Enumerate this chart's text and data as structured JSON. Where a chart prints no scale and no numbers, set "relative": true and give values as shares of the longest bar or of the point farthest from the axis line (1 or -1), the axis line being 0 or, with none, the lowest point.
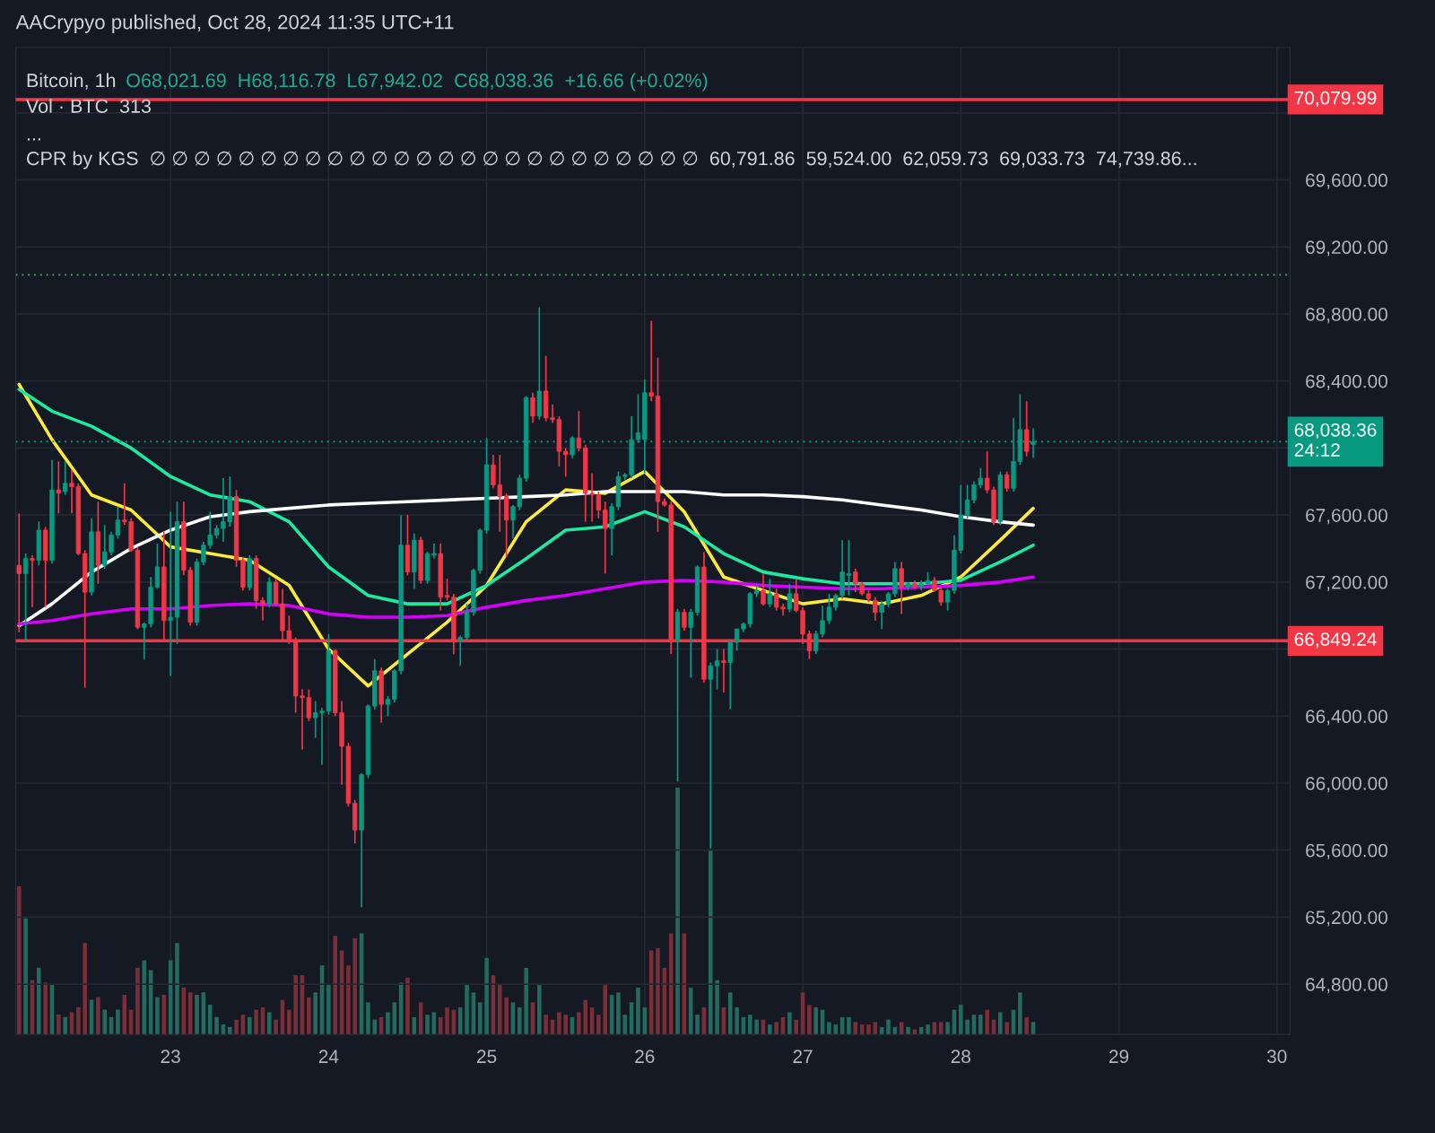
{
  "chart_data": [
    {
      "type": "candlestick",
      "title": "AACrypyo published, Oct 28, 2024 11:35 UTC+11",
      "subtitle": "Bitcoin, 1h",
      "annotations": [
        "O68,021.69  H68,116.78  L67,942.02  C68,038.36  +16.66 (+0.02%)",
        "Vol · BTC  313",
        "...",
        "CPR by KGS  ∅ ∅ ∅ ∅ ∅ ∅ ∅ ∅ ∅ ∅ ∅ ∅ ∅ ∅ ∅ ∅ ∅ ∅ ∅ ∅ ∅ ∅ ∅ ∅ ∅  60,791.86  59,524.00  62,059.73  69,033.73  74,739.86..."
      ],
      "x": [
        "2024-10-22T01:00",
        "2024-10-22T02:00",
        "2024-10-22T03:00",
        "2024-10-22T04:00",
        "2024-10-22T05:00",
        "2024-10-22T06:00",
        "2024-10-22T07:00",
        "2024-10-22T08:00",
        "2024-10-22T09:00",
        "2024-10-22T10:00",
        "2024-10-22T11:00",
        "2024-10-22T12:00",
        "2024-10-22T13:00",
        "2024-10-22T14:00",
        "2024-10-22T15:00",
        "2024-10-22T16:00",
        "2024-10-22T17:00",
        "2024-10-22T18:00",
        "2024-10-22T19:00",
        "2024-10-22T20:00",
        "2024-10-22T21:00",
        "2024-10-22T22:00",
        "2024-10-22T23:00",
        "2024-10-23T00:00",
        "2024-10-23T01:00",
        "2024-10-23T02:00",
        "2024-10-23T03:00",
        "2024-10-23T04:00",
        "2024-10-23T05:00",
        "2024-10-23T06:00",
        "2024-10-23T07:00",
        "2024-10-23T08:00",
        "2024-10-23T09:00",
        "2024-10-23T10:00",
        "2024-10-23T11:00",
        "2024-10-23T12:00",
        "2024-10-23T13:00",
        "2024-10-23T14:00",
        "2024-10-23T15:00",
        "2024-10-23T16:00",
        "2024-10-23T17:00",
        "2024-10-23T18:00",
        "2024-10-23T19:00",
        "2024-10-23T20:00",
        "2024-10-23T21:00",
        "2024-10-23T22:00",
        "2024-10-23T23:00",
        "2024-10-24T00:00",
        "2024-10-24T01:00",
        "2024-10-24T02:00",
        "2024-10-24T03:00",
        "2024-10-24T04:00",
        "2024-10-24T05:00",
        "2024-10-24T06:00",
        "2024-10-24T07:00",
        "2024-10-24T08:00",
        "2024-10-24T09:00",
        "2024-10-24T10:00",
        "2024-10-24T11:00",
        "2024-10-24T12:00",
        "2024-10-24T13:00",
        "2024-10-24T14:00",
        "2024-10-24T15:00",
        "2024-10-24T16:00",
        "2024-10-24T17:00",
        "2024-10-24T18:00",
        "2024-10-24T19:00",
        "2024-10-24T20:00",
        "2024-10-24T21:00",
        "2024-10-24T22:00",
        "2024-10-24T23:00",
        "2024-10-25T00:00",
        "2024-10-25T01:00",
        "2024-10-25T02:00",
        "2024-10-25T03:00",
        "2024-10-25T04:00",
        "2024-10-25T05:00",
        "2024-10-25T06:00",
        "2024-10-25T07:00",
        "2024-10-25T08:00",
        "2024-10-25T09:00",
        "2024-10-25T10:00",
        "2024-10-25T11:00",
        "2024-10-25T12:00",
        "2024-10-25T13:00",
        "2024-10-25T14:00",
        "2024-10-25T15:00",
        "2024-10-25T16:00",
        "2024-10-25T17:00",
        "2024-10-25T18:00",
        "2024-10-25T19:00",
        "2024-10-25T20:00",
        "2024-10-25T21:00",
        "2024-10-25T22:00",
        "2024-10-25T23:00",
        "2024-10-26T00:00",
        "2024-10-26T01:00",
        "2024-10-26T02:00",
        "2024-10-26T03:00",
        "2024-10-26T04:00",
        "2024-10-26T05:00",
        "2024-10-26T06:00",
        "2024-10-26T07:00",
        "2024-10-26T08:00",
        "2024-10-26T09:00",
        "2024-10-26T10:00",
        "2024-10-26T11:00",
        "2024-10-26T12:00",
        "2024-10-26T13:00",
        "2024-10-26T14:00",
        "2024-10-26T15:00",
        "2024-10-26T16:00",
        "2024-10-26T17:00",
        "2024-10-26T18:00",
        "2024-10-26T19:00",
        "2024-10-26T20:00",
        "2024-10-26T21:00",
        "2024-10-26T22:00",
        "2024-10-26T23:00",
        "2024-10-27T00:00",
        "2024-10-27T01:00",
        "2024-10-27T02:00",
        "2024-10-27T03:00",
        "2024-10-27T04:00",
        "2024-10-27T05:00",
        "2024-10-27T06:00",
        "2024-10-27T07:00",
        "2024-10-27T08:00",
        "2024-10-27T09:00",
        "2024-10-27T10:00",
        "2024-10-27T11:00",
        "2024-10-27T12:00",
        "2024-10-27T13:00",
        "2024-10-27T14:00",
        "2024-10-27T15:00",
        "2024-10-27T16:00",
        "2024-10-27T17:00",
        "2024-10-27T18:00",
        "2024-10-27T19:00",
        "2024-10-27T20:00",
        "2024-10-27T21:00",
        "2024-10-27T22:00",
        "2024-10-27T23:00",
        "2024-10-28T00:00",
        "2024-10-28T01:00",
        "2024-10-28T02:00",
        "2024-10-28T03:00",
        "2024-10-28T04:00",
        "2024-10-28T05:00",
        "2024-10-28T06:00",
        "2024-10-28T07:00",
        "2024-10-28T08:00",
        "2024-10-28T09:00",
        "2024-10-28T10:00",
        "2024-10-28T11:00"
      ],
      "ohlc": [
        [
          67300,
          67610,
          66900,
          67250
        ],
        [
          67250,
          67370,
          66850,
          67340
        ],
        [
          67340,
          67360,
          67050,
          67330
        ],
        [
          67330,
          67560,
          67300,
          67510
        ],
        [
          67510,
          67530,
          67050,
          67330
        ],
        [
          67330,
          67930,
          67310,
          67750
        ],
        [
          67750,
          67920,
          67610,
          67730
        ],
        [
          67740,
          67920,
          67720,
          67790
        ],
        [
          67790,
          67870,
          67610,
          67770
        ],
        [
          67770,
          67790,
          67360,
          67370
        ],
        [
          67370,
          67390,
          66570,
          67140
        ],
        [
          67140,
          67580,
          67120,
          67500
        ],
        [
          67500,
          67680,
          67190,
          67300
        ],
        [
          67300,
          67540,
          67280,
          67380
        ],
        [
          67380,
          67500,
          67360,
          67480
        ],
        [
          67480,
          67650,
          67460,
          67570
        ],
        [
          67570,
          67790,
          67540,
          67560
        ],
        [
          67560,
          67580,
          67380,
          67390
        ],
        [
          67390,
          67410,
          66920,
          66930
        ],
        [
          66930,
          66960,
          66740,
          66950
        ],
        [
          66950,
          67230,
          66930,
          67170
        ],
        [
          67170,
          67430,
          67160,
          67290
        ],
        [
          67290,
          67500,
          66850,
          66970
        ],
        [
          66970,
          67620,
          66640,
          66990
        ],
        [
          66990,
          67680,
          66830,
          67560
        ],
        [
          67560,
          67680,
          67240,
          67270
        ],
        [
          67270,
          67290,
          66940,
          66960
        ],
        [
          66960,
          67340,
          66940,
          67320
        ],
        [
          67320,
          67440,
          67300,
          67420
        ],
        [
          67420,
          67620,
          67400,
          67480
        ],
        [
          67480,
          67540,
          67460,
          67520
        ],
        [
          67520,
          67820,
          67440,
          67560
        ],
        [
          67560,
          67830,
          67530,
          67710
        ],
        [
          67710,
          67750,
          67290,
          67330
        ],
        [
          67330,
          67350,
          67150,
          67170
        ],
        [
          67170,
          67360,
          67150,
          67340
        ],
        [
          67340,
          67360,
          67040,
          67090
        ],
        [
          67090,
          67110,
          66970,
          67070
        ],
        [
          67070,
          67230,
          67050,
          67200
        ],
        [
          67200,
          67220,
          67060,
          67070
        ],
        [
          67070,
          67160,
          66850,
          66910
        ],
        [
          66910,
          67000,
          66830,
          66850
        ],
        [
          66850,
          66870,
          66420,
          66520
        ],
        [
          66520,
          66560,
          66200,
          66510
        ],
        [
          66510,
          66560,
          66370,
          66390
        ],
        [
          66390,
          66490,
          66270,
          66420
        ],
        [
          66420,
          66450,
          66110,
          66430
        ],
        [
          66430,
          66890,
          66410,
          66790
        ],
        [
          66790,
          66800,
          66400,
          66420
        ],
        [
          66420,
          66490,
          65990,
          66220
        ],
        [
          66220,
          66240,
          65860,
          65880
        ],
        [
          65880,
          65900,
          65640,
          65720
        ],
        [
          65720,
          66060,
          65260,
          66050
        ],
        [
          66050,
          66470,
          66030,
          66460
        ],
        [
          66460,
          66740,
          66440,
          66670
        ],
        [
          66670,
          66690,
          66360,
          66470
        ],
        [
          66470,
          66520,
          66400,
          66500
        ],
        [
          66500,
          66680,
          66480,
          66670
        ],
        [
          66670,
          67600,
          66650,
          67420
        ],
        [
          67420,
          67600,
          67240,
          67260
        ],
        [
          67260,
          67490,
          67160,
          67450
        ],
        [
          67450,
          67470,
          67190,
          67210
        ],
        [
          67210,
          67380,
          67190,
          67370
        ],
        [
          67360,
          67430,
          67340,
          67370
        ],
        [
          67370,
          67430,
          67030,
          67110
        ],
        [
          67120,
          67220,
          67090,
          67110
        ],
        [
          67110,
          67130,
          66770,
          66850
        ],
        [
          66850,
          66880,
          66700,
          66870
        ],
        [
          66870,
          67070,
          66850,
          67020
        ],
        [
          67020,
          67280,
          67000,
          67270
        ],
        [
          67270,
          67520,
          67250,
          67510
        ],
        [
          67510,
          68060,
          67490,
          67900
        ],
        [
          67900,
          67960,
          67760,
          67780
        ],
        [
          67780,
          67960,
          67500,
          67710
        ],
        [
          67710,
          67730,
          67350,
          67570
        ],
        [
          67570,
          67660,
          67460,
          67650
        ],
        [
          67650,
          67840,
          67630,
          67820
        ],
        [
          67820,
          68310,
          67800,
          68300
        ],
        [
          68300,
          68330,
          68150,
          68190
        ],
        [
          68190,
          68840,
          68170,
          68340
        ],
        [
          68340,
          68550,
          68160,
          68180
        ],
        [
          68180,
          68260,
          68150,
          68170
        ],
        [
          68170,
          68190,
          67890,
          67980
        ],
        [
          67980,
          68000,
          67830,
          67960
        ],
        [
          67960,
          68070,
          67940,
          68060
        ],
        [
          68060,
          68220,
          67980,
          68000
        ],
        [
          68000,
          68020,
          67560,
          67730
        ],
        [
          67730,
          67850,
          67560,
          67720
        ],
        [
          67720,
          67740,
          67580,
          67630
        ],
        [
          67630,
          67680,
          67250,
          67520
        ],
        [
          67520,
          67670,
          67360,
          67650
        ],
        [
          67650,
          67860,
          67630,
          67830
        ],
        [
          67830,
          67850,
          67810,
          67840
        ],
        [
          67840,
          68190,
          67820,
          68050
        ],
        [
          68050,
          68320,
          68030,
          68090
        ],
        [
          68050,
          68410,
          67850,
          68330
        ],
        [
          68330,
          68760,
          68280,
          68310
        ],
        [
          68310,
          68540,
          67500,
          67680
        ],
        [
          67680,
          67700,
          67650,
          67660
        ],
        [
          67660,
          67680,
          66770,
          66850
        ],
        [
          66850,
          67040,
          66010,
          67020
        ],
        [
          67020,
          67040,
          66910,
          66930
        ],
        [
          66930,
          67040,
          66630,
          67020
        ],
        [
          67020,
          67300,
          67000,
          67290
        ],
        [
          67290,
          67380,
          66600,
          66620
        ],
        [
          66620,
          66720,
          65610,
          66700
        ],
        [
          66700,
          66800,
          66560,
          66730
        ],
        [
          66730,
          66800,
          66540,
          66720
        ],
        [
          66720,
          66850,
          66440,
          66840
        ],
        [
          66840,
          66920,
          66790,
          66920
        ],
        [
          66920,
          66960,
          66900,
          66950
        ],
        [
          66950,
          67140,
          66930,
          67130
        ],
        [
          67130,
          67190,
          67110,
          67150
        ],
        [
          67150,
          67250,
          67060,
          67070
        ],
        [
          67070,
          67220,
          67050,
          67130
        ],
        [
          67130,
          67160,
          67030,
          67050
        ],
        [
          67050,
          67070,
          67000,
          67040
        ],
        [
          67040,
          67190,
          67020,
          67130
        ],
        [
          67130,
          67220,
          67020,
          67030
        ],
        [
          67030,
          67050,
          66830,
          66890
        ],
        [
          66890,
          66910,
          66740,
          66790
        ],
        [
          66790,
          66910,
          66770,
          66890
        ],
        [
          66890,
          67060,
          66870,
          66970
        ],
        [
          66970,
          67130,
          66950,
          67050
        ],
        [
          67050,
          67130,
          67030,
          67120
        ],
        [
          67120,
          67450,
          67100,
          67260
        ],
        [
          67240,
          67450,
          67120,
          67250
        ],
        [
          67260,
          67280,
          67140,
          67190
        ],
        [
          67190,
          67200,
          67120,
          67130
        ],
        [
          67130,
          67150,
          67080,
          67100
        ],
        [
          67090,
          67110,
          66970,
          67020
        ],
        [
          67020,
          67090,
          66920,
          67070
        ],
        [
          67070,
          67140,
          67050,
          67130
        ],
        [
          67130,
          67320,
          67110,
          67280
        ],
        [
          67280,
          67320,
          67010,
          67170
        ],
        [
          67170,
          67200,
          67150,
          67190
        ],
        [
          67190,
          67210,
          67160,
          67170
        ],
        [
          67170,
          67210,
          67150,
          67190
        ],
        [
          67190,
          67260,
          67180,
          67210
        ],
        [
          67210,
          67230,
          67140,
          67150
        ],
        [
          67150,
          67170,
          67060,
          67080
        ],
        [
          67080,
          67160,
          67030,
          67150
        ],
        [
          67150,
          67480,
          67130,
          67390
        ],
        [
          67390,
          67780,
          67370,
          67600
        ],
        [
          67600,
          67780,
          67580,
          67690
        ],
        [
          67690,
          67800,
          67670,
          67780
        ],
        [
          67780,
          67880,
          67760,
          67820
        ],
        [
          67820,
          67980,
          67730,
          67750
        ],
        [
          67750,
          67770,
          67540,
          67560
        ],
        [
          67560,
          67860,
          67540,
          67840
        ],
        [
          67840,
          67860,
          67740,
          67760
        ],
        [
          67760,
          68180,
          67740,
          67920
        ],
        [
          67920,
          68320,
          67900,
          68110
        ],
        [
          68110,
          68280,
          67950,
          67980
        ],
        [
          68021.69,
          68116.78,
          67942.02,
          68038.36
        ]
      ],
      "colors": [
        "#f23645",
        "#089981",
        "#f23645",
        "#089981",
        "#f23645",
        "#089981",
        "#f23645",
        "#089981",
        "#f23645",
        "#f23645",
        "#f23645",
        "#089981",
        "#f23645",
        "#089981",
        "#089981",
        "#089981",
        "#f23645",
        "#f23645",
        "#f23645",
        "#089981",
        "#089981",
        "#089981",
        "#f23645",
        "#089981",
        "#089981",
        "#f23645",
        "#f23645",
        "#089981",
        "#089981",
        "#089981",
        "#089981",
        "#089981",
        "#089981",
        "#f23645",
        "#f23645",
        "#089981",
        "#f23645",
        "#f23645",
        "#089981",
        "#f23645",
        "#f23645",
        "#f23645",
        "#f23645",
        "#f23645",
        "#f23645",
        "#089981",
        "#089981",
        "#089981",
        "#f23645",
        "#f23645",
        "#f23645",
        "#f23645",
        "#089981",
        "#089981",
        "#089981",
        "#f23645",
        "#089981",
        "#089981",
        "#089981",
        "#f23645",
        "#089981",
        "#f23645",
        "#089981",
        "#089981",
        "#f23645",
        "#f23645",
        "#f23645",
        "#089981",
        "#089981",
        "#089981",
        "#089981",
        "#089981",
        "#f23645",
        "#f23645",
        "#f23645",
        "#089981",
        "#089981",
        "#089981",
        "#f23645",
        "#089981",
        "#f23645",
        "#f23645",
        "#f23645",
        "#f23645",
        "#089981",
        "#f23645",
        "#f23645",
        "#f23645",
        "#f23645",
        "#f23645",
        "#089981",
        "#089981",
        "#089981",
        "#089981",
        "#089981",
        "#089981",
        "#f23645",
        "#f23645",
        "#f23645",
        "#f23645",
        "#089981",
        "#f23645",
        "#089981",
        "#089981",
        "#f23645",
        "#089981",
        "#089981",
        "#f23645",
        "#089981",
        "#089981",
        "#089981",
        "#089981",
        "#089981",
        "#f23645",
        "#089981",
        "#f23645",
        "#f23645",
        "#089981",
        "#f23645",
        "#f23645",
        "#f23645",
        "#089981",
        "#089981",
        "#089981",
        "#089981",
        "#089981",
        "#089981",
        "#f23645",
        "#f23645",
        "#f23645",
        "#f23645",
        "#089981",
        "#089981",
        "#089981",
        "#f23645",
        "#089981",
        "#f23645",
        "#089981",
        "#089981",
        "#f23645",
        "#f23645",
        "#089981",
        "#089981",
        "#089981",
        "#089981",
        "#089981",
        "#089981",
        "#f23645",
        "#f23645",
        "#089981",
        "#f23645",
        "#089981",
        "#089981",
        "#f23645",
        "#089981"
      ],
      "series": [
        {
          "type": "line",
          "color": "#ffeb3b",
          "x": [
            "2024-10-22T01:00",
            "2024-10-22T06:00",
            "2024-10-22T12:00",
            "2024-10-22T18:00",
            "2024-10-23T00:00",
            "2024-10-23T06:00",
            "2024-10-23T12:00",
            "2024-10-23T18:00",
            "2024-10-24T00:00",
            "2024-10-24T06:00",
            "2024-10-24T12:00",
            "2024-10-24T18:00",
            "2024-10-25T00:00",
            "2024-10-25T06:00",
            "2024-10-25T12:00",
            "2024-10-25T18:00",
            "2024-10-26T00:00",
            "2024-10-26T06:00",
            "2024-10-26T12:00",
            "2024-10-26T18:00",
            "2024-10-27T00:00",
            "2024-10-27T06:00",
            "2024-10-27T12:00",
            "2024-10-27T18:00",
            "2024-10-28T00:00",
            "2024-10-28T06:00",
            "2024-10-28T11:00"
          ],
          "values": [
            68380,
            68050,
            67720,
            67630,
            67410,
            67370,
            67330,
            67180,
            66800,
            66580,
            66770,
            66960,
            67180,
            67560,
            67750,
            67730,
            67860,
            67620,
            67230,
            67150,
            67070,
            67100,
            67070,
            67120,
            67230,
            67450,
            67640
          ]
        },
        {
          "type": "line",
          "color": "#1de9a0",
          "x": [
            "2024-10-22T01:00",
            "2024-10-22T06:00",
            "2024-10-22T12:00",
            "2024-10-22T18:00",
            "2024-10-23T00:00",
            "2024-10-23T06:00",
            "2024-10-23T12:00",
            "2024-10-23T18:00",
            "2024-10-24T00:00",
            "2024-10-24T06:00",
            "2024-10-24T12:00",
            "2024-10-24T18:00",
            "2024-10-25T00:00",
            "2024-10-25T06:00",
            "2024-10-25T12:00",
            "2024-10-25T18:00",
            "2024-10-26T00:00",
            "2024-10-26T06:00",
            "2024-10-26T12:00",
            "2024-10-26T18:00",
            "2024-10-27T00:00",
            "2024-10-27T06:00",
            "2024-10-27T12:00",
            "2024-10-27T18:00",
            "2024-10-28T00:00",
            "2024-10-28T06:00",
            "2024-10-28T11:00"
          ],
          "values": [
            68350,
            68220,
            68130,
            68000,
            67830,
            67720,
            67680,
            67560,
            67290,
            67120,
            67070,
            67070,
            67180,
            67340,
            67510,
            67530,
            67620,
            67530,
            67370,
            67260,
            67220,
            67190,
            67190,
            67190,
            67210,
            67320,
            67420
          ]
        },
        {
          "type": "line",
          "color": "#ffffff",
          "x": [
            "2024-10-22T01:00",
            "2024-10-22T06:00",
            "2024-10-22T12:00",
            "2024-10-22T18:00",
            "2024-10-23T00:00",
            "2024-10-23T06:00",
            "2024-10-23T12:00",
            "2024-10-23T18:00",
            "2024-10-24T00:00",
            "2024-10-24T06:00",
            "2024-10-24T12:00",
            "2024-10-24T18:00",
            "2024-10-25T00:00",
            "2024-10-25T06:00",
            "2024-10-25T12:00",
            "2024-10-25T18:00",
            "2024-10-26T00:00",
            "2024-10-26T06:00",
            "2024-10-26T12:00",
            "2024-10-26T18:00",
            "2024-10-27T00:00",
            "2024-10-27T06:00",
            "2024-10-27T12:00",
            "2024-10-27T18:00",
            "2024-10-28T00:00",
            "2024-10-28T06:00",
            "2024-10-28T11:00"
          ],
          "values": [
            66940,
            67070,
            67260,
            67400,
            67510,
            67590,
            67620,
            67640,
            67660,
            67670,
            67680,
            67690,
            67700,
            67710,
            67720,
            67740,
            67740,
            67740,
            67720,
            67720,
            67710,
            67690,
            67660,
            67630,
            67590,
            67560,
            67540
          ]
        },
        {
          "type": "line",
          "color": "#d500f9",
          "x": [
            "2024-10-22T01:00",
            "2024-10-22T06:00",
            "2024-10-22T12:00",
            "2024-10-22T18:00",
            "2024-10-23T00:00",
            "2024-10-23T06:00",
            "2024-10-23T12:00",
            "2024-10-23T18:00",
            "2024-10-24T00:00",
            "2024-10-24T06:00",
            "2024-10-24T12:00",
            "2024-10-24T18:00",
            "2024-10-25T00:00",
            "2024-10-25T06:00",
            "2024-10-25T12:00",
            "2024-10-25T18:00",
            "2024-10-26T00:00",
            "2024-10-26T06:00",
            "2024-10-26T12:00",
            "2024-10-26T18:00",
            "2024-10-27T00:00",
            "2024-10-27T06:00",
            "2024-10-27T12:00",
            "2024-10-27T18:00",
            "2024-10-28T00:00",
            "2024-10-28T06:00",
            "2024-10-28T11:00"
          ],
          "values": [
            66950,
            66970,
            67010,
            67040,
            67040,
            67060,
            67070,
            67060,
            67010,
            66990,
            66990,
            67000,
            67050,
            67090,
            67120,
            67160,
            67200,
            67210,
            67200,
            67180,
            67170,
            67160,
            67160,
            67170,
            67180,
            67200,
            67230
          ]
        }
      ],
      "ref_lines": [
        {
          "axis": "y",
          "value": 70079.99,
          "label": "70,079.99",
          "color": "#f23645",
          "line_style": "solid"
        },
        {
          "axis": "y",
          "value": 66849.24,
          "label": "66,849.24",
          "color": "#f23645",
          "line_style": "solid"
        },
        {
          "axis": "y",
          "value": 68038.36,
          "label": "68,038.36\n24:12",
          "color": "#089981",
          "line_style": "dotted"
        },
        {
          "axis": "y",
          "value": 69033.73,
          "color": "#4caf50",
          "line_style": "dotted"
        }
      ],
      "xlim": [
        "2024-10-22T00:30",
        "2024-10-30T02:00"
      ],
      "xticks": [
        {
          "value": "2024-10-23",
          "label": "23"
        },
        {
          "value": "2024-10-24",
          "label": "24"
        },
        {
          "value": "2024-10-25",
          "label": "25"
        },
        {
          "value": "2024-10-26",
          "label": "26"
        },
        {
          "value": "2024-10-27",
          "label": "27"
        },
        {
          "value": "2024-10-28",
          "label": "28"
        },
        {
          "value": "2024-10-29",
          "label": "29"
        },
        {
          "value": "2024-10-30",
          "label": "30"
        }
      ],
      "ylim": [
        64500,
        70390
      ],
      "yticks": [
        {
          "value": 64800,
          "label": "64,800.00"
        },
        {
          "value": 65200,
          "label": "65,200.00"
        },
        {
          "value": 65600,
          "label": "65,600.00"
        },
        {
          "value": 66000,
          "label": "66,000.00"
        },
        {
          "value": 66400,
          "label": "66,400.00"
        },
        {
          "value": 66800,
          "label": null
        },
        {
          "value": 67200,
          "label": "67,200.00"
        },
        {
          "value": 67600,
          "label": "67,600.00"
        },
        {
          "value": 68000,
          "label": null
        },
        {
          "value": 68400,
          "label": "68,400.00"
        },
        {
          "value": 68800,
          "label": "68,800.00"
        },
        {
          "value": 69200,
          "label": "69,200.00"
        },
        {
          "value": 69600,
          "label": "69,600.00"
        },
        {
          "value": 70000,
          "label": null
        }
      ],
      "grid": true
    },
    {
      "type": "bar",
      "relative": true,
      "tick_labels": false,
      "xlim": [
        "2024-10-22T00:30",
        "2024-10-30T02:00"
      ],
      "x": [
        "2024-10-22T01:00",
        "2024-10-22T02:00",
        "2024-10-22T03:00",
        "2024-10-22T04:00",
        "2024-10-22T05:00",
        "2024-10-22T06:00",
        "2024-10-22T07:00",
        "2024-10-22T08:00",
        "2024-10-22T09:00",
        "2024-10-22T10:00",
        "2024-10-22T11:00",
        "2024-10-22T12:00",
        "2024-10-22T13:00",
        "2024-10-22T14:00",
        "2024-10-22T15:00",
        "2024-10-22T16:00",
        "2024-10-22T17:00",
        "2024-10-22T18:00",
        "2024-10-22T19:00",
        "2024-10-22T20:00",
        "2024-10-22T21:00",
        "2024-10-22T22:00",
        "2024-10-22T23:00",
        "2024-10-23T00:00",
        "2024-10-23T01:00",
        "2024-10-23T02:00",
        "2024-10-23T03:00",
        "2024-10-23T04:00",
        "2024-10-23T05:00",
        "2024-10-23T06:00",
        "2024-10-23T07:00",
        "2024-10-23T08:00",
        "2024-10-23T09:00",
        "2024-10-23T10:00",
        "2024-10-23T11:00",
        "2024-10-23T12:00",
        "2024-10-23T13:00",
        "2024-10-23T14:00",
        "2024-10-23T15:00",
        "2024-10-23T16:00",
        "2024-10-23T17:00",
        "2024-10-23T18:00",
        "2024-10-23T19:00",
        "2024-10-23T20:00",
        "2024-10-23T21:00",
        "2024-10-23T22:00",
        "2024-10-23T23:00",
        "2024-10-24T00:00",
        "2024-10-24T01:00",
        "2024-10-24T02:00",
        "2024-10-24T03:00",
        "2024-10-24T04:00",
        "2024-10-24T05:00",
        "2024-10-24T06:00",
        "2024-10-24T07:00",
        "2024-10-24T08:00",
        "2024-10-24T09:00",
        "2024-10-24T10:00",
        "2024-10-24T11:00",
        "2024-10-24T12:00",
        "2024-10-24T13:00",
        "2024-10-24T14:00",
        "2024-10-24T15:00",
        "2024-10-24T16:00",
        "2024-10-24T17:00",
        "2024-10-24T18:00",
        "2024-10-24T19:00",
        "2024-10-24T20:00",
        "2024-10-24T21:00",
        "2024-10-24T22:00",
        "2024-10-24T23:00",
        "2024-10-25T00:00",
        "2024-10-25T01:00",
        "2024-10-25T02:00",
        "2024-10-25T03:00",
        "2024-10-25T04:00",
        "2024-10-25T05:00",
        "2024-10-25T06:00",
        "2024-10-25T07:00",
        "2024-10-25T08:00",
        "2024-10-25T09:00",
        "2024-10-25T10:00",
        "2024-10-25T11:00",
        "2024-10-25T12:00",
        "2024-10-25T13:00",
        "2024-10-25T14:00",
        "2024-10-25T15:00",
        "2024-10-25T16:00",
        "2024-10-25T17:00",
        "2024-10-25T18:00",
        "2024-10-25T19:00",
        "2024-10-25T20:00",
        "2024-10-25T21:00",
        "2024-10-25T22:00",
        "2024-10-25T23:00",
        "2024-10-26T00:00",
        "2024-10-26T01:00",
        "2024-10-26T02:00",
        "2024-10-26T03:00",
        "2024-10-26T04:00",
        "2024-10-26T05:00",
        "2024-10-26T06:00",
        "2024-10-26T07:00",
        "2024-10-26T08:00",
        "2024-10-26T09:00",
        "2024-10-26T10:00",
        "2024-10-26T11:00",
        "2024-10-26T12:00",
        "2024-10-26T13:00",
        "2024-10-26T14:00",
        "2024-10-26T15:00",
        "2024-10-26T16:00",
        "2024-10-26T17:00",
        "2024-10-26T18:00",
        "2024-10-26T19:00",
        "2024-10-26T20:00",
        "2024-10-26T21:00",
        "2024-10-26T22:00",
        "2024-10-26T23:00",
        "2024-10-27T00:00",
        "2024-10-27T01:00",
        "2024-10-27T02:00",
        "2024-10-27T03:00",
        "2024-10-27T04:00",
        "2024-10-27T05:00",
        "2024-10-27T06:00",
        "2024-10-27T07:00",
        "2024-10-27T08:00",
        "2024-10-27T09:00",
        "2024-10-27T10:00",
        "2024-10-27T11:00",
        "2024-10-27T12:00",
        "2024-10-27T13:00",
        "2024-10-27T14:00",
        "2024-10-27T15:00",
        "2024-10-27T16:00",
        "2024-10-27T17:00",
        "2024-10-27T18:00",
        "2024-10-27T19:00",
        "2024-10-27T20:00",
        "2024-10-27T21:00",
        "2024-10-27T22:00",
        "2024-10-27T23:00",
        "2024-10-28T00:00",
        "2024-10-28T01:00",
        "2024-10-28T02:00",
        "2024-10-28T03:00",
        "2024-10-28T04:00",
        "2024-10-28T05:00",
        "2024-10-28T06:00",
        "2024-10-28T07:00",
        "2024-10-28T08:00",
        "2024-10-28T09:00",
        "2024-10-28T10:00",
        "2024-10-28T11:00"
      ],
      "values": [
        0.6,
        0.47,
        0.22,
        0.27,
        0.21,
        0.2,
        0.08,
        0.07,
        0.09,
        0.11,
        0.37,
        0.14,
        0.15,
        0.1,
        0.07,
        0.1,
        0.16,
        0.1,
        0.27,
        0.3,
        0.26,
        0.15,
        0.16,
        0.3,
        0.37,
        0.19,
        0.17,
        0.16,
        0.17,
        0.12,
        0.07,
        0.04,
        0.03,
        0.06,
        0.08,
        0.07,
        0.1,
        0.11,
        0.09,
        0.06,
        0.14,
        0.1,
        0.24,
        0.24,
        0.15,
        0.17,
        0.28,
        0.2,
        0.4,
        0.34,
        0.28,
        0.39,
        0.41,
        0.13,
        0.06,
        0.07,
        0.09,
        0.13,
        0.21,
        0.23,
        0.07,
        0.13,
        0.08,
        0.09,
        0.07,
        0.11,
        0.1,
        0.11,
        0.2,
        0.17,
        0.13,
        0.31,
        0.24,
        0.2,
        0.15,
        0.13,
        0.11,
        0.27,
        0.13,
        0.2,
        0.08,
        0.06,
        0.09,
        0.08,
        0.07,
        0.09,
        0.14,
        0.11,
        0.08,
        0.2,
        0.16,
        0.17,
        0.08,
        0.13,
        0.19,
        0.11,
        0.34,
        0.35,
        0.27,
        0.41,
        1,
        0.41,
        0.19,
        0.08,
        0.11,
        0.75,
        0.22,
        0.11,
        0.17,
        0.11,
        0.07,
        0.08,
        0.06,
        0.06,
        0.04,
        0.05,
        0.07,
        0.09,
        0.06,
        0.17,
        0.12,
        0.11,
        0.1,
        0.05,
        0.04,
        0.07,
        0.07,
        0.05,
        0.04,
        0.04,
        0.05,
        0.03,
        0.06,
        0.03,
        0.05,
        0.03,
        0.02,
        0.03,
        0.04,
        0.05,
        0.05,
        0.05,
        0.1,
        0.12,
        0.06,
        0.08,
        0.08,
        0.1,
        0.06,
        0.09,
        0.05,
        0.1,
        0.17,
        0.07,
        0.05
      ],
      "colors": [
        "#7a2f38",
        "#236b60",
        "#7a2f38",
        "#236b60",
        "#7a2f38",
        "#236b60",
        "#7a2f38",
        "#236b60",
        "#7a2f38",
        "#7a2f38",
        "#7a2f38",
        "#236b60",
        "#7a2f38",
        "#236b60",
        "#236b60",
        "#236b60",
        "#7a2f38",
        "#7a2f38",
        "#7a2f38",
        "#236b60",
        "#236b60",
        "#236b60",
        "#7a2f38",
        "#236b60",
        "#236b60",
        "#7a2f38",
        "#7a2f38",
        "#236b60",
        "#236b60",
        "#236b60",
        "#236b60",
        "#236b60",
        "#236b60",
        "#7a2f38",
        "#7a2f38",
        "#236b60",
        "#7a2f38",
        "#7a2f38",
        "#236b60",
        "#7a2f38",
        "#7a2f38",
        "#7a2f38",
        "#7a2f38",
        "#7a2f38",
        "#7a2f38",
        "#236b60",
        "#236b60",
        "#236b60",
        "#7a2f38",
        "#7a2f38",
        "#7a2f38",
        "#7a2f38",
        "#236b60",
        "#236b60",
        "#236b60",
        "#7a2f38",
        "#236b60",
        "#236b60",
        "#236b60",
        "#7a2f38",
        "#236b60",
        "#7a2f38",
        "#236b60",
        "#236b60",
        "#7a2f38",
        "#7a2f38",
        "#7a2f38",
        "#236b60",
        "#236b60",
        "#236b60",
        "#236b60",
        "#236b60",
        "#7a2f38",
        "#7a2f38",
        "#7a2f38",
        "#236b60",
        "#236b60",
        "#236b60",
        "#7a2f38",
        "#236b60",
        "#7a2f38",
        "#7a2f38",
        "#7a2f38",
        "#7a2f38",
        "#236b60",
        "#7a2f38",
        "#7a2f38",
        "#7a2f38",
        "#7a2f38",
        "#7a2f38",
        "#236b60",
        "#236b60",
        "#236b60",
        "#236b60",
        "#236b60",
        "#236b60",
        "#7a2f38",
        "#7a2f38",
        "#7a2f38",
        "#7a2f38",
        "#236b60",
        "#7a2f38",
        "#236b60",
        "#236b60",
        "#7a2f38",
        "#236b60",
        "#236b60",
        "#7a2f38",
        "#236b60",
        "#236b60",
        "#236b60",
        "#236b60",
        "#236b60",
        "#7a2f38",
        "#236b60",
        "#7a2f38",
        "#7a2f38",
        "#236b60",
        "#7a2f38",
        "#7a2f38",
        "#7a2f38",
        "#236b60",
        "#236b60",
        "#236b60",
        "#236b60",
        "#236b60",
        "#236b60",
        "#7a2f38",
        "#7a2f38",
        "#7a2f38",
        "#7a2f38",
        "#236b60",
        "#236b60",
        "#236b60",
        "#7a2f38",
        "#236b60",
        "#7a2f38",
        "#236b60",
        "#236b60",
        "#7a2f38",
        "#7a2f38",
        "#236b60",
        "#236b60",
        "#236b60",
        "#236b60",
        "#236b60",
        "#236b60",
        "#7a2f38",
        "#7a2f38",
        "#236b60",
        "#7a2f38",
        "#236b60",
        "#236b60",
        "#7a2f38",
        "#236b60"
      ]
    }
  ]
}
